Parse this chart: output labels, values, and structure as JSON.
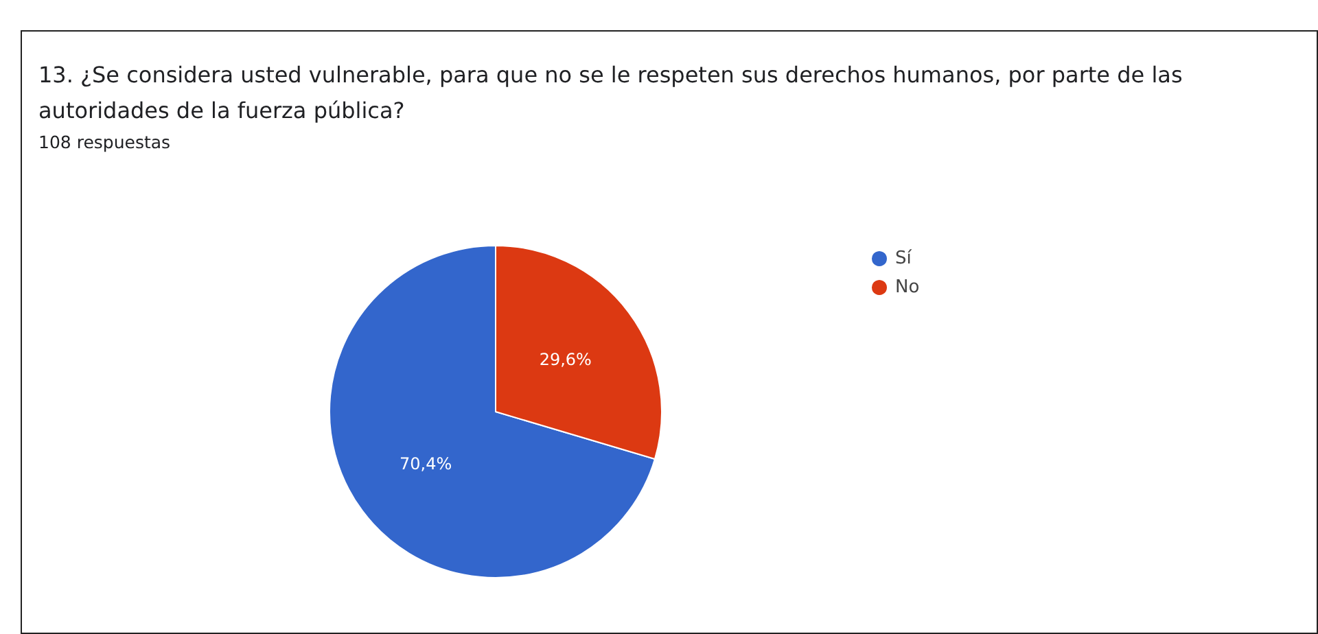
{
  "chart_data": {
    "type": "pie",
    "title": "13. ¿Se considera usted vulnerable, para que no se le respeten sus derechos humanos, por parte de las autoridades de la fuerza pública?",
    "subtitle": "108 respuestas",
    "categories": [
      "Sí",
      "No"
    ],
    "values": [
      70.4,
      29.6
    ],
    "colors": [
      "#3366cc",
      "#dc3912"
    ],
    "legend": "right",
    "value_labels": [
      "70,4%",
      "29,6%"
    ]
  }
}
